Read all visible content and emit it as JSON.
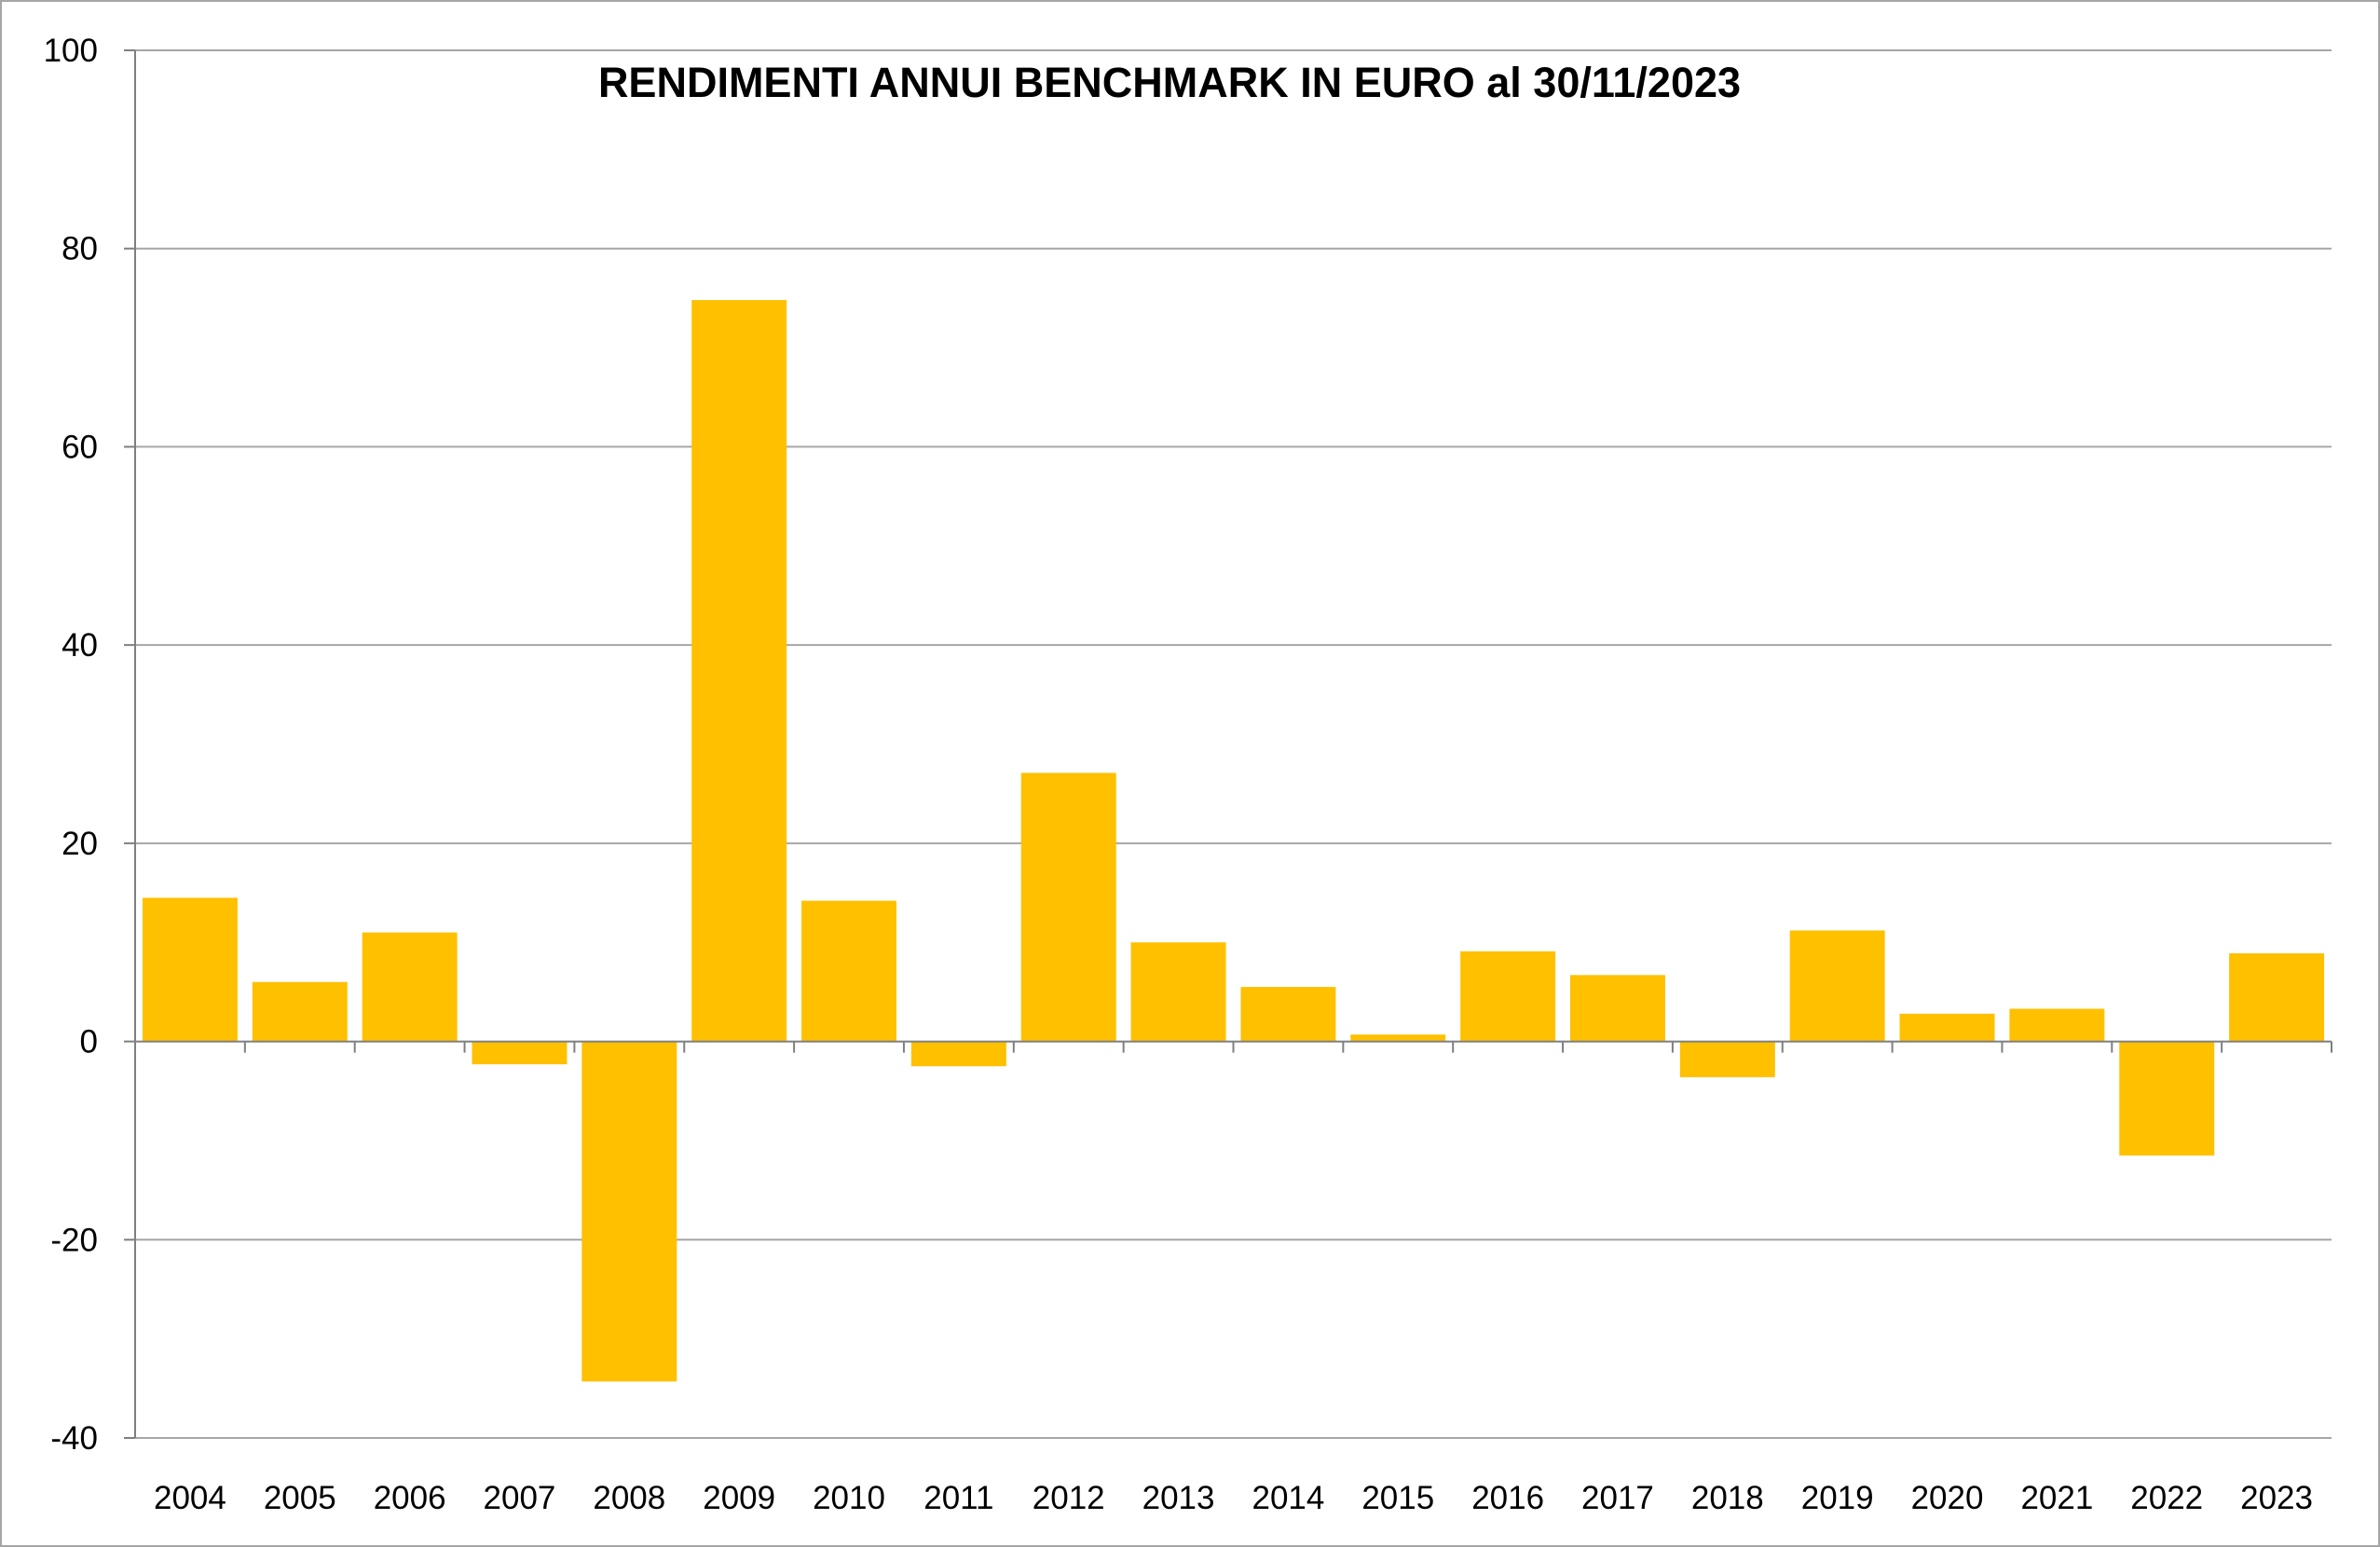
{
  "chart_data": {
    "type": "bar",
    "title": "RENDIMENTI ANNUI BENCHMARK IN EURO al 30/11/2023",
    "xlabel": "",
    "ylabel": "",
    "categories": [
      "2004",
      "2005",
      "2006",
      "2007",
      "2008",
      "2009",
      "2010",
      "2011",
      "2012",
      "2013",
      "2014",
      "2015",
      "2016",
      "2017",
      "2018",
      "2019",
      "2020",
      "2021",
      "2022",
      "2023"
    ],
    "series": [
      {
        "values": [
          14.5,
          6.0,
          11.0,
          -2.3,
          -34.3,
          74.8,
          14.2,
          -2.5,
          27.1,
          10.0,
          5.5,
          0.7,
          9.1,
          6.7,
          -3.6,
          11.2,
          2.8,
          3.3,
          -11.5,
          8.9
        ]
      }
    ],
    "ylim": [
      -40,
      100
    ],
    "yticks": [
      -40,
      -20,
      0,
      20,
      40,
      60,
      80,
      100
    ],
    "grid": true,
    "legend": "none",
    "bar_color": "#ffc000",
    "gridline_color": "#a6a6a6"
  }
}
